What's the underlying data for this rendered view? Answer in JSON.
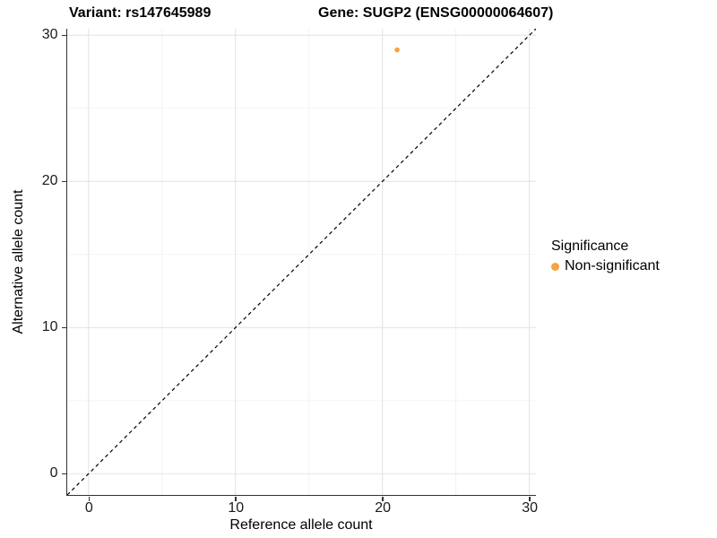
{
  "chart_data": {
    "type": "scatter",
    "title_left": "Variant: rs147645989",
    "title_right": "Gene: SUGP2 (ENSG00000064607)",
    "xlabel": "Reference allele count",
    "ylabel": "Alternative allele count",
    "xlim": [
      -1.45,
      30.45
    ],
    "ylim": [
      -1.45,
      30.45
    ],
    "xticks": [
      0,
      10,
      20,
      30
    ],
    "yticks": [
      0,
      10,
      20,
      30
    ],
    "minor_ticks": [
      5,
      15,
      25
    ],
    "grid": true,
    "points": [
      {
        "x": 21,
        "y": 29,
        "significance": "Non-significant"
      }
    ],
    "identity_line": {
      "style": "dashed",
      "color": "#000000"
    },
    "legend": {
      "title": "Significance",
      "position": "right",
      "entries": [
        {
          "label": "Non-significant",
          "color": "#F8A23B"
        }
      ]
    },
    "colors": {
      "point_nonsignificant": "#F8A23B",
      "grid_major": "#E4E4E4",
      "grid_minor": "#F2F2F2",
      "axis_line": "#333333",
      "background": "#FFFFFF"
    }
  }
}
